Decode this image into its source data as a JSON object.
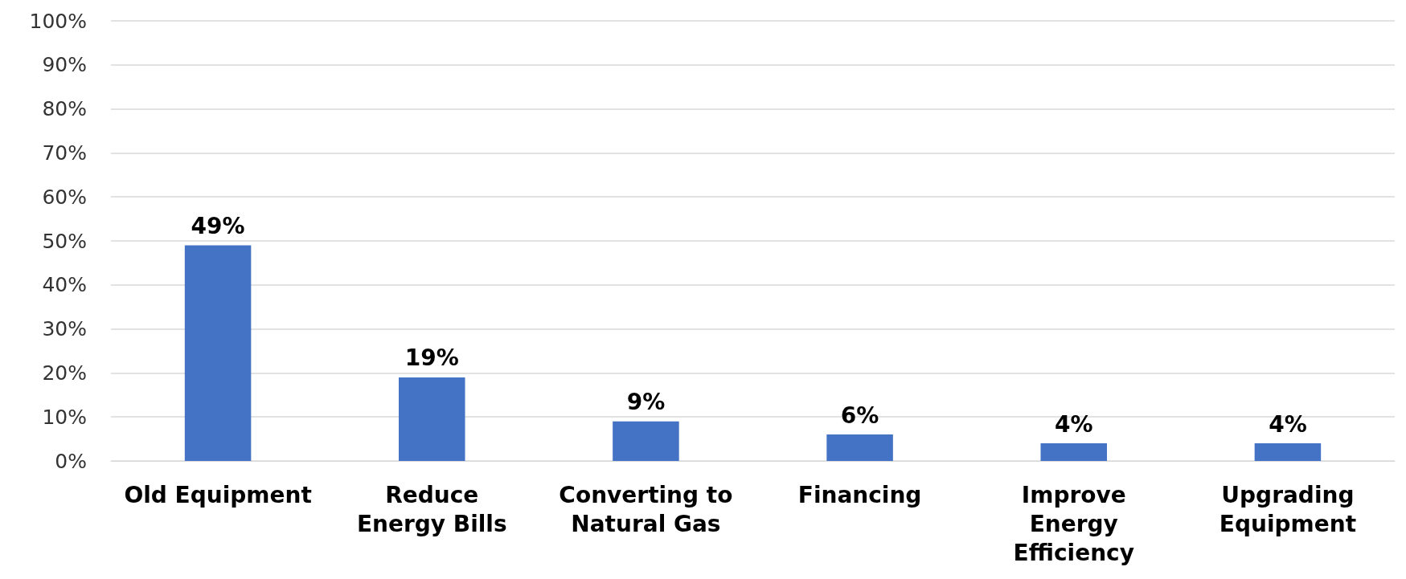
{
  "chart_data": {
    "type": "bar",
    "categories": [
      "Old Equipment",
      "Reduce\nEnergy Bills",
      "Converting to\nNatural Gas",
      "Financing",
      "Improve\nEnergy\nEfficiency",
      "Upgrading\nEquipment"
    ],
    "values": [
      49,
      19,
      9,
      6,
      4,
      4
    ],
    "value_labels": [
      "49%",
      "19%",
      "9%",
      "6%",
      "4%",
      "4%"
    ],
    "color": "#4472c4",
    "ylim": [
      0,
      100
    ],
    "yticks": [
      {
        "value": 0,
        "label": "0%"
      },
      {
        "value": 10,
        "label": "10%"
      },
      {
        "value": 20,
        "label": "20%"
      },
      {
        "value": 30,
        "label": "30%"
      },
      {
        "value": 40,
        "label": "40%"
      },
      {
        "value": 50,
        "label": "50%"
      },
      {
        "value": 60,
        "label": "60%"
      },
      {
        "value": 70,
        "label": "70%"
      },
      {
        "value": 80,
        "label": "80%"
      },
      {
        "value": 90,
        "label": "90%"
      },
      {
        "value": 100,
        "label": "100%"
      }
    ],
    "grid": "y"
  }
}
